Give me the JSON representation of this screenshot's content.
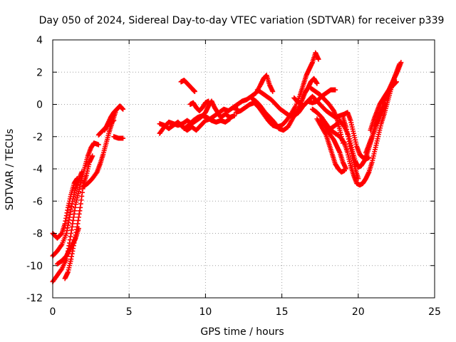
{
  "chart_data": {
    "type": "scatter",
    "title": "Day 050 of 2024, Sidereal Day-to-day VTEC variation (SDTVAR) for receiver p339",
    "xlabel": "GPS time / hours",
    "ylabel": "SDTVAR / TECUs",
    "xlim": [
      0,
      25
    ],
    "ylim": [
      -12,
      4
    ],
    "xticks": [
      0,
      5,
      10,
      15,
      20,
      25
    ],
    "yticks": [
      -12,
      -10,
      -8,
      -6,
      -4,
      -2,
      0,
      2,
      4
    ],
    "grid": true,
    "marker": "plus",
    "color": "#ff0000",
    "tracks": [
      [
        [
          0.0,
          -11.0
        ],
        [
          0.3,
          -10.6
        ],
        [
          0.6,
          -10.2
        ],
        [
          0.9,
          -9.6
        ],
        [
          1.1,
          -8.6
        ],
        [
          1.3,
          -7.4
        ],
        [
          1.5,
          -6.2
        ],
        [
          1.7,
          -5.4
        ],
        [
          1.9,
          -4.6
        ],
        [
          2.1,
          -3.9
        ],
        [
          2.3,
          -3.2
        ],
        [
          2.5,
          -2.7
        ],
        [
          2.7,
          -2.4
        ],
        [
          3.0,
          -2.5
        ]
      ],
      [
        [
          0.0,
          -9.4
        ],
        [
          0.3,
          -9.1
        ],
        [
          0.6,
          -8.7
        ],
        [
          0.9,
          -8.0
        ],
        [
          1.1,
          -7.0
        ],
        [
          1.3,
          -6.0
        ],
        [
          1.5,
          -5.2
        ],
        [
          1.7,
          -4.7
        ],
        [
          1.9,
          -4.2
        ]
      ],
      [
        [
          0.0,
          -8.0
        ],
        [
          0.3,
          -8.3
        ],
        [
          0.6,
          -8.0
        ],
        [
          0.8,
          -7.4
        ],
        [
          1.0,
          -6.4
        ],
        [
          1.2,
          -5.6
        ],
        [
          1.4,
          -4.9
        ],
        [
          1.6,
          -4.6
        ]
      ],
      [
        [
          0.3,
          -9.9
        ],
        [
          0.6,
          -9.7
        ],
        [
          0.9,
          -9.4
        ],
        [
          1.1,
          -9.0
        ],
        [
          1.3,
          -8.7
        ],
        [
          1.5,
          -8.3
        ],
        [
          1.7,
          -7.7
        ]
      ],
      [
        [
          0.8,
          -10.8
        ],
        [
          1.0,
          -10.4
        ],
        [
          1.2,
          -9.6
        ],
        [
          1.4,
          -8.6
        ],
        [
          1.6,
          -7.6
        ],
        [
          1.8,
          -6.4
        ],
        [
          2.0,
          -5.0
        ],
        [
          2.2,
          -4.4
        ],
        [
          2.4,
          -3.6
        ],
        [
          2.6,
          -3.2
        ]
      ],
      [
        [
          2.0,
          -5.1
        ],
        [
          2.3,
          -4.9
        ],
        [
          2.6,
          -4.6
        ],
        [
          2.9,
          -4.2
        ],
        [
          3.1,
          -3.7
        ],
        [
          3.3,
          -3.1
        ],
        [
          3.5,
          -2.4
        ],
        [
          3.7,
          -1.7
        ],
        [
          3.9,
          -1.1
        ],
        [
          4.1,
          -0.5
        ]
      ],
      [
        [
          3.4,
          -1.6
        ],
        [
          3.6,
          -1.2
        ],
        [
          3.8,
          -0.8
        ],
        [
          4.0,
          -0.5
        ],
        [
          4.2,
          -0.3
        ],
        [
          4.4,
          -0.1
        ],
        [
          4.6,
          -0.3
        ]
      ],
      [
        [
          3.0,
          -1.9
        ],
        [
          3.2,
          -1.7
        ],
        [
          3.5,
          -1.4
        ],
        [
          3.8,
          -1.1
        ],
        [
          4.0,
          -1.0
        ]
      ],
      [
        [
          4.0,
          -2.0
        ],
        [
          4.3,
          -2.1
        ],
        [
          4.6,
          -2.1
        ]
      ],
      [
        [
          7.0,
          -1.8
        ],
        [
          7.3,
          -1.4
        ],
        [
          7.6,
          -1.1
        ],
        [
          7.9,
          -1.2
        ],
        [
          8.2,
          -1.3
        ],
        [
          8.5,
          -1.2
        ],
        [
          8.8,
          -1.0
        ],
        [
          9.1,
          -1.2
        ],
        [
          9.4,
          -1.0
        ],
        [
          9.7,
          -0.8
        ],
        [
          10.0,
          -0.5
        ],
        [
          10.2,
          -0.1
        ],
        [
          10.4,
          0.2
        ],
        [
          10.6,
          -0.2
        ],
        [
          10.8,
          -0.5
        ],
        [
          11.0,
          -0.8
        ],
        [
          11.3,
          -0.6
        ],
        [
          11.6,
          -0.8
        ],
        [
          11.9,
          -0.7
        ]
      ],
      [
        [
          7.0,
          -1.2
        ],
        [
          7.3,
          -1.3
        ],
        [
          7.6,
          -1.5
        ],
        [
          7.9,
          -1.3
        ],
        [
          8.2,
          -1.1
        ],
        [
          8.5,
          -1.4
        ],
        [
          8.8,
          -1.6
        ],
        [
          9.1,
          -1.4
        ],
        [
          9.4,
          -1.6
        ],
        [
          9.7,
          -1.3
        ],
        [
          10.0,
          -1.0
        ],
        [
          10.3,
          -0.9
        ],
        [
          10.6,
          -0.7
        ],
        [
          10.9,
          -0.5
        ],
        [
          11.2,
          -0.3
        ],
        [
          11.5,
          -0.4
        ],
        [
          11.8,
          -0.2
        ],
        [
          12.1,
          -0.3
        ]
      ],
      [
        [
          8.4,
          1.4
        ],
        [
          8.6,
          1.5
        ],
        [
          8.8,
          1.3
        ],
        [
          9.0,
          1.1
        ],
        [
          9.2,
          0.9
        ],
        [
          9.3,
          0.8
        ]
      ],
      [
        [
          8.6,
          -1.5
        ],
        [
          8.9,
          -1.3
        ],
        [
          9.2,
          -1.0
        ],
        [
          9.5,
          -0.8
        ],
        [
          9.8,
          -0.7
        ],
        [
          10.1,
          -0.8
        ],
        [
          10.4,
          -1.0
        ],
        [
          10.7,
          -1.1
        ],
        [
          11.0,
          -1.0
        ],
        [
          11.3,
          -1.1
        ],
        [
          11.6,
          -0.9
        ]
      ],
      [
        [
          9.0,
          0.0
        ],
        [
          9.2,
          0.1
        ],
        [
          9.4,
          -0.2
        ],
        [
          9.6,
          -0.4
        ],
        [
          9.8,
          -0.2
        ],
        [
          10.0,
          0.1
        ],
        [
          10.2,
          0.2
        ]
      ],
      [
        [
          11.8,
          -0.2
        ],
        [
          12.1,
          0.0
        ],
        [
          12.4,
          0.2
        ],
        [
          12.7,
          0.3
        ],
        [
          13.0,
          0.5
        ],
        [
          13.3,
          0.7
        ],
        [
          13.6,
          1.2
        ],
        [
          13.8,
          1.6
        ],
        [
          14.0,
          1.8
        ],
        [
          14.2,
          1.2
        ],
        [
          14.4,
          0.8
        ]
      ],
      [
        [
          12.0,
          -0.5
        ],
        [
          12.3,
          -0.4
        ],
        [
          12.6,
          -0.2
        ],
        [
          12.9,
          0.0
        ],
        [
          13.2,
          0.1
        ],
        [
          13.5,
          -0.2
        ],
        [
          13.8,
          -0.6
        ],
        [
          14.1,
          -1.0
        ],
        [
          14.4,
          -1.3
        ],
        [
          14.7,
          -1.4
        ],
        [
          15.0,
          -1.3
        ],
        [
          15.3,
          -1.0
        ],
        [
          15.6,
          -0.6
        ],
        [
          15.9,
          -0.1
        ],
        [
          16.2,
          0.6
        ],
        [
          16.4,
          1.2
        ],
        [
          16.6,
          1.8
        ],
        [
          16.8,
          2.2
        ],
        [
          17.0,
          2.6
        ],
        [
          17.2,
          3.2
        ],
        [
          17.4,
          2.8
        ]
      ],
      [
        [
          13.0,
          0.4
        ],
        [
          13.3,
          0.2
        ],
        [
          13.6,
          -0.1
        ],
        [
          13.9,
          -0.5
        ],
        [
          14.2,
          -0.8
        ],
        [
          14.5,
          -1.1
        ],
        [
          14.8,
          -1.5
        ],
        [
          15.1,
          -1.6
        ],
        [
          15.4,
          -1.4
        ],
        [
          15.7,
          -0.9
        ],
        [
          16.0,
          -0.4
        ],
        [
          16.3,
          0.2
        ],
        [
          16.5,
          0.7
        ],
        [
          16.7,
          1.0
        ],
        [
          16.9,
          1.4
        ],
        [
          17.1,
          1.6
        ],
        [
          17.3,
          1.3
        ]
      ],
      [
        [
          13.4,
          0.9
        ],
        [
          13.7,
          0.7
        ],
        [
          14.0,
          0.5
        ],
        [
          14.3,
          0.3
        ],
        [
          14.6,
          0.0
        ],
        [
          14.9,
          -0.3
        ],
        [
          15.2,
          -0.5
        ],
        [
          15.5,
          -0.7
        ],
        [
          15.8,
          -0.7
        ],
        [
          16.1,
          -0.5
        ],
        [
          16.4,
          -0.1
        ],
        [
          16.7,
          0.2
        ],
        [
          17.0,
          0.1
        ],
        [
          17.3,
          0.2
        ],
        [
          17.6,
          0.5
        ],
        [
          17.9,
          0.7
        ],
        [
          18.2,
          0.9
        ],
        [
          18.5,
          0.9
        ]
      ],
      [
        [
          15.8,
          0.4
        ],
        [
          16.1,
          0.1
        ],
        [
          16.4,
          -0.1
        ],
        [
          16.7,
          0.2
        ],
        [
          17.0,
          0.5
        ],
        [
          17.3,
          0.2
        ],
        [
          17.6,
          -0.1
        ],
        [
          17.9,
          -0.4
        ],
        [
          18.2,
          -0.6
        ],
        [
          18.5,
          -0.8
        ],
        [
          18.8,
          -0.7
        ],
        [
          19.1,
          -0.6
        ],
        [
          19.3,
          -0.5
        ],
        [
          19.5,
          -1.0
        ],
        [
          19.7,
          -1.8
        ],
        [
          19.9,
          -2.6
        ],
        [
          20.1,
          -3.1
        ],
        [
          20.3,
          -3.3
        ],
        [
          20.5,
          -3.4
        ],
        [
          20.7,
          -3.3
        ]
      ],
      [
        [
          17.0,
          -0.3
        ],
        [
          17.3,
          -0.5
        ],
        [
          17.6,
          -0.8
        ],
        [
          17.9,
          -1.2
        ],
        [
          18.2,
          -1.6
        ],
        [
          18.5,
          -1.8
        ],
        [
          18.8,
          -2.0
        ],
        [
          19.1,
          -2.4
        ],
        [
          19.3,
          -3.0
        ],
        [
          19.5,
          -3.8
        ],
        [
          19.7,
          -4.4
        ],
        [
          19.9,
          -4.9
        ],
        [
          20.1,
          -5.0
        ],
        [
          20.3,
          -4.9
        ],
        [
          20.5,
          -4.6
        ],
        [
          20.7,
          -4.2
        ],
        [
          20.9,
          -3.6
        ],
        [
          21.1,
          -2.8
        ],
        [
          21.3,
          -2.0
        ],
        [
          21.5,
          -1.2
        ],
        [
          21.7,
          -0.6
        ],
        [
          21.9,
          0.1
        ],
        [
          22.1,
          0.8
        ],
        [
          22.3,
          1.5
        ],
        [
          22.5,
          2.0
        ],
        [
          22.7,
          2.5
        ]
      ],
      [
        [
          17.5,
          -1.0
        ],
        [
          17.8,
          -1.3
        ],
        [
          18.1,
          -1.8
        ],
        [
          18.4,
          -2.2
        ],
        [
          18.6,
          -2.6
        ],
        [
          18.8,
          -3.0
        ],
        [
          19.0,
          -3.6
        ],
        [
          19.2,
          -4.0
        ]
      ],
      [
        [
          18.2,
          -1.5
        ],
        [
          18.5,
          -1.3
        ],
        [
          18.8,
          -1.0
        ],
        [
          19.1,
          -1.4
        ],
        [
          19.4,
          -2.0
        ],
        [
          19.6,
          -2.8
        ],
        [
          19.8,
          -3.5
        ],
        [
          20.0,
          -3.9
        ],
        [
          20.2,
          -3.8
        ],
        [
          20.4,
          -3.5
        ],
        [
          20.6,
          -3.0
        ],
        [
          20.8,
          -2.4
        ],
        [
          21.0,
          -1.8
        ],
        [
          21.2,
          -1.2
        ],
        [
          21.4,
          -0.7
        ],
        [
          21.6,
          -0.3
        ],
        [
          21.8,
          0.0
        ]
      ],
      [
        [
          20.8,
          -1.6
        ],
        [
          21.0,
          -1.0
        ],
        [
          21.2,
          -0.5
        ],
        [
          21.4,
          0.0
        ],
        [
          21.6,
          0.3
        ],
        [
          21.8,
          0.6
        ],
        [
          22.0,
          0.9
        ],
        [
          22.2,
          1.3
        ],
        [
          22.4,
          1.7
        ],
        [
          22.6,
          2.1
        ],
        [
          22.8,
          2.6
        ]
      ],
      [
        [
          20.5,
          -3.0
        ],
        [
          20.7,
          -2.5
        ],
        [
          20.9,
          -2.0
        ],
        [
          21.1,
          -1.4
        ],
        [
          21.3,
          -0.9
        ],
        [
          21.5,
          -0.4
        ],
        [
          21.7,
          0.2
        ],
        [
          21.9,
          0.6
        ],
        [
          22.1,
          1.0
        ],
        [
          22.3,
          1.2
        ],
        [
          22.5,
          1.4
        ]
      ],
      [
        [
          19.0,
          -0.8
        ],
        [
          19.2,
          -1.4
        ],
        [
          19.4,
          -2.3
        ],
        [
          19.6,
          -3.2
        ],
        [
          19.8,
          -4.0
        ],
        [
          20.0,
          -4.6
        ]
      ],
      [
        [
          16.9,
          1.0
        ],
        [
          17.2,
          0.8
        ],
        [
          17.5,
          0.6
        ],
        [
          17.8,
          0.3
        ],
        [
          18.1,
          0.0
        ],
        [
          18.4,
          -0.4
        ],
        [
          18.6,
          -0.9
        ],
        [
          18.8,
          -1.6
        ],
        [
          19.0,
          -2.4
        ]
      ],
      [
        [
          17.3,
          -0.9
        ],
        [
          17.6,
          -1.4
        ],
        [
          17.9,
          -1.9
        ],
        [
          18.1,
          -2.5
        ],
        [
          18.3,
          -3.1
        ],
        [
          18.5,
          -3.7
        ],
        [
          18.7,
          -4.0
        ],
        [
          18.9,
          -4.2
        ],
        [
          19.1,
          -4.1
        ]
      ]
    ]
  }
}
